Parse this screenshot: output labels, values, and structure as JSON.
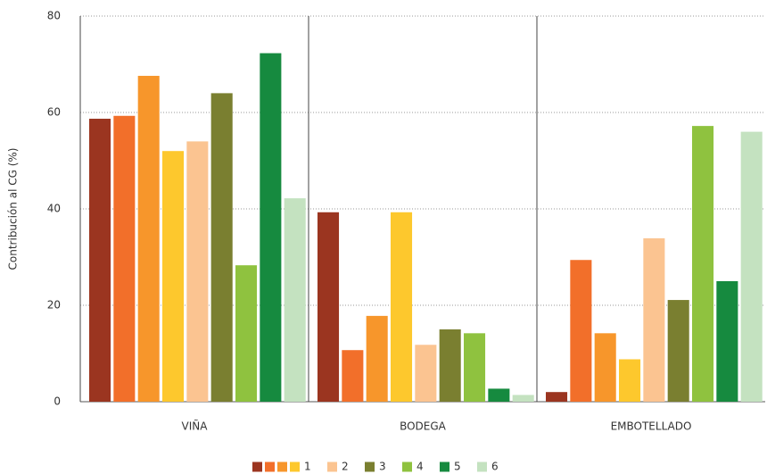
{
  "chart_data": {
    "type": "bar",
    "y_label": "Contribución al CG (%)",
    "categories": [
      "VIÑA",
      "BODEGA",
      "EMBOTELLADO"
    ],
    "series": [
      {
        "name": "1",
        "color": "#9b3520",
        "values": [
          58.7,
          39.3,
          2
        ]
      },
      {
        "name": "1",
        "color": "#f26f2a",
        "values": [
          59.3,
          10.7,
          29.4
        ]
      },
      {
        "name": "1",
        "color": "#f7962b",
        "values": [
          67.6,
          17.8,
          14.2
        ]
      },
      {
        "name": "1",
        "color": "#fdc82d",
        "values": [
          52,
          39.3,
          8.8
        ]
      },
      {
        "name": "2",
        "color": "#fbc491",
        "values": [
          54,
          11.8,
          33.9
        ]
      },
      {
        "name": "3",
        "color": "#7a7f30",
        "values": [
          64,
          15,
          21.1
        ]
      },
      {
        "name": "4",
        "color": "#8fc23f",
        "values": [
          28.3,
          14.2,
          57.2
        ]
      },
      {
        "name": "5",
        "color": "#168a3f",
        "values": [
          72.3,
          2.7,
          25
        ]
      },
      {
        "name": "6",
        "color": "#c4e2c0",
        "values": [
          42.2,
          1.4,
          56
        ]
      }
    ],
    "ylim": [
      0,
      80
    ],
    "yticks": [
      0,
      20,
      40,
      60,
      80
    ],
    "grid": true
  }
}
